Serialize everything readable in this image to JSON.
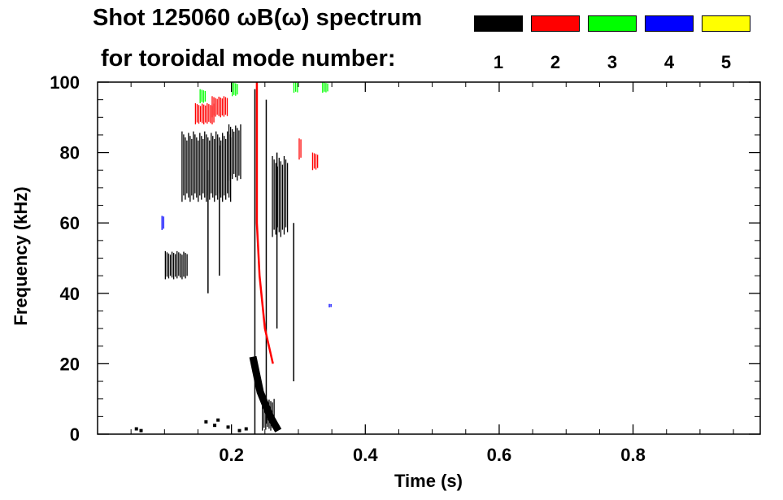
{
  "title": "Shot 125060 ωB(ω) spectrum",
  "subtitle": "for toroidal mode number:",
  "legend": [
    {
      "label": "1",
      "color": "#000000"
    },
    {
      "label": "2",
      "color": "#ff0000"
    },
    {
      "label": "3",
      "color": "#00ff00"
    },
    {
      "label": "4",
      "color": "#0000ff"
    },
    {
      "label": "5",
      "color": "#ffff00"
    }
  ],
  "chart_data": {
    "type": "heatmap",
    "title": "Shot 125060 ωB(ω) spectrum",
    "xlabel": "Time (s)",
    "ylabel": "Frequency (kHz)",
    "xlim": [
      0.0,
      0.99
    ],
    "ylim": [
      0,
      100
    ],
    "x_ticks": [
      0.2,
      0.4,
      0.6,
      0.8
    ],
    "x_tick_labels": [
      "0.2",
      "0.4",
      "0.6",
      "0.8"
    ],
    "y_ticks": [
      0,
      20,
      40,
      60,
      80,
      100
    ],
    "y_tick_labels": [
      "0",
      "20",
      "40",
      "60",
      "80",
      "100"
    ],
    "grid": false,
    "legend_position": "top-right",
    "series": [
      {
        "name": "1",
        "color": "#000000",
        "regions": [
          {
            "t": [
              0.1,
              0.135
            ],
            "f": [
              44,
              52
            ]
          },
          {
            "t": [
              0.125,
              0.2
            ],
            "f": [
              66,
              86
            ]
          },
          {
            "t": [
              0.195,
              0.215
            ],
            "f": [
              72,
              88
            ]
          },
          {
            "t": [
              0.245,
              0.265
            ],
            "f": [
              1,
              10
            ]
          },
          {
            "t": [
              0.26,
              0.285
            ],
            "f": [
              56,
              79
            ]
          }
        ],
        "streaks": [
          {
            "t": 0.235,
            "f": [
              0,
              98
            ]
          },
          {
            "t": 0.252,
            "f": [
              3,
              95
            ]
          },
          {
            "t": 0.268,
            "f": [
              30,
              80
            ]
          },
          {
            "t": 0.293,
            "f": [
              15,
              60
            ]
          },
          {
            "t": 0.165,
            "f": [
              40,
              75
            ]
          },
          {
            "t": 0.182,
            "f": [
              45,
              82
            ]
          }
        ],
        "chirp": [
          [
            0.232,
            22
          ],
          [
            0.243,
            12
          ],
          [
            0.258,
            5
          ],
          [
            0.27,
            1
          ]
        ],
        "points": [
          [
            0.058,
            1.5
          ],
          [
            0.065,
            1
          ],
          [
            0.162,
            3.5
          ],
          [
            0.175,
            2.5
          ],
          [
            0.18,
            4
          ],
          [
            0.212,
            1
          ],
          [
            0.222,
            1.5
          ],
          [
            0.195,
            2
          ]
        ]
      },
      {
        "name": "2",
        "color": "#ff0000",
        "regions": [
          {
            "t": [
              0.145,
              0.175
            ],
            "f": [
              88,
              94
            ]
          },
          {
            "t": [
              0.17,
              0.195
            ],
            "f": [
              90,
              96
            ]
          },
          {
            "t": [
              0.3,
              0.305
            ],
            "f": [
              78,
              84
            ]
          },
          {
            "t": [
              0.32,
              0.33
            ],
            "f": [
              75,
              80
            ]
          }
        ],
        "chirp": [
          [
            0.238,
            100
          ],
          [
            0.238,
            60
          ],
          [
            0.242,
            45
          ],
          [
            0.25,
            30
          ],
          [
            0.262,
            20
          ]
        ]
      },
      {
        "name": "3",
        "color": "#00ff00",
        "regions": [
          {
            "t": [
              0.152,
              0.162
            ],
            "f": [
              94,
              98
            ]
          },
          {
            "t": [
              0.2,
              0.21
            ],
            "f": [
              96,
              100
            ]
          },
          {
            "t": [
              0.292,
              0.3
            ],
            "f": [
              97,
              100
            ]
          },
          {
            "t": [
              0.335,
              0.345
            ],
            "f": [
              97,
              100
            ]
          }
        ]
      },
      {
        "name": "4",
        "color": "#0000ff",
        "regions": [
          {
            "t": [
              0.095,
              0.1
            ],
            "f": [
              58,
              62
            ]
          },
          {
            "t": [
              0.345,
              0.35
            ],
            "f": [
              36,
              37
            ]
          }
        ]
      },
      {
        "name": "5",
        "color": "#ffff00",
        "regions": []
      }
    ]
  }
}
